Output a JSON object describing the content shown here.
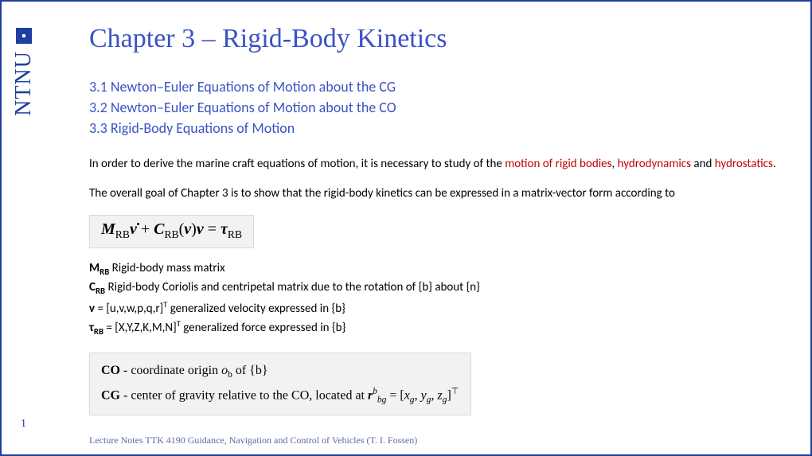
{
  "brand": {
    "name": "NTNU"
  },
  "title": "Chapter 3 – Rigid-Body Kinetics",
  "toc": {
    "s1": "3.1 Newton–Euler Equations of Motion about the CG",
    "s2": "3.2 Newton–Euler Equations of Motion about the CO",
    "s3": "3.3 Rigid-Body Equations of Motion"
  },
  "intro": {
    "pre": "In order to derive the marine craft equations of motion, it is necessary to study of the ",
    "t1": "motion of rigid bodies",
    "mid1": ", ",
    "t2": "hydrodynamics",
    "mid2": " and ",
    "t3": "hydrostatics",
    "post": "."
  },
  "goal": "The overall goal of Chapter 3 is to show that the rigid-body kinetics can be expressed in a matrix-vector form according to",
  "eq": {
    "m": "M",
    "rb": "RB",
    "nudot": "ν̇",
    "plus": " + ",
    "c": "C",
    "open": "(",
    "nu": "ν",
    "close": ")",
    "eq": " = ",
    "tau": "τ"
  },
  "defs": {
    "d1a": "M",
    "d1sub": "RB",
    "d1b": " Rigid-body mass matrix",
    "d2a": "C",
    "d2sub": "RB",
    "d2b": "  Rigid-body Coriolis and centripetal matrix due to the rotation of {b} about {n}",
    "d3a": "ν",
    "d3b": " = [u,v,w,p,q,r]",
    "d3sup": "T",
    "d3c": "    generalized velocity expressed in {b}",
    "d4a": "τ",
    "d4sub": "RB",
    "d4b": " = [X,Y,Z,K,M,N]",
    "d4sup": "T",
    "d4c": " generalized force expressed in {b}"
  },
  "cobox": {
    "l1a": "CO",
    "l1b": " - coordinate origin ",
    "l1c": "o",
    "l1sub": "b",
    "l1d": " of {b}",
    "l2a": "CG",
    "l2b": " - center of gravity relative to the CO, located at ",
    "l2c": "r",
    "l2sup": "b",
    "l2sub": "bg",
    "l2eq": " = [",
    "l2x": "x",
    "l2xg": "g",
    "l2c1": ", ",
    "l2y": "y",
    "l2yg": "g",
    "l2c2": ", ",
    "l2z": "z",
    "l2zg": "g",
    "l2close": "]",
    "l2t": "⊤"
  },
  "page_num": "1",
  "footer": "Lecture Notes TTK 4190 Guidance, Navigation and Control of Vehicles (T. I. Fossen)"
}
